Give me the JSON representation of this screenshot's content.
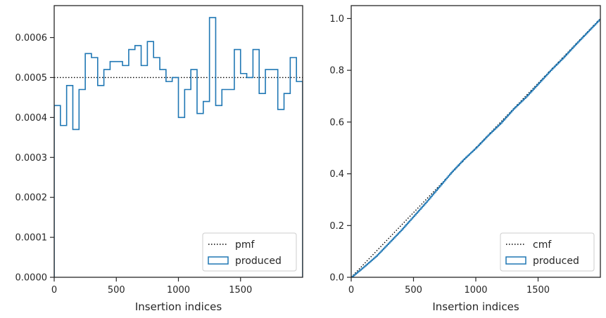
{
  "chart_data": [
    {
      "type": "line",
      "subtype": "step-histogram",
      "xlabel": "Insertion indices",
      "ylabel": "",
      "xlim": [
        0,
        2000
      ],
      "ylim": [
        0,
        0.00068
      ],
      "xticks": [
        0,
        500,
        1000,
        1500
      ],
      "xtick_labels": [
        "0",
        "500",
        "1000",
        "1500"
      ],
      "yticks": [
        0,
        0.0001,
        0.0002,
        0.0003,
        0.0004,
        0.0005,
        0.0006
      ],
      "ytick_labels": [
        "0.0000",
        "0.0001",
        "0.0002",
        "0.0003",
        "0.0004",
        "0.0005",
        "0.0006"
      ],
      "grid": false,
      "legend_position": "lower-right",
      "bin_width": 50,
      "series": [
        {
          "name": "pmf",
          "style": "dotted",
          "color": "#000000",
          "x": [
            0,
            2000
          ],
          "y": [
            0.0005,
            0.0005
          ]
        },
        {
          "name": "produced",
          "style": "step",
          "color": "#1f77b4",
          "bin_edges_start": [
            0,
            50,
            100,
            150,
            200,
            250,
            300,
            350,
            400,
            450,
            500,
            550,
            600,
            650,
            700,
            750,
            800,
            850,
            900,
            950,
            1000,
            1050,
            1100,
            1150,
            1200,
            1250,
            1300,
            1350,
            1400,
            1450,
            1500,
            1550,
            1600,
            1650,
            1700,
            1750,
            1800,
            1850,
            1900,
            1950
          ],
          "values": [
            0.00043,
            0.00038,
            0.00048,
            0.00037,
            0.00047,
            0.00056,
            0.00055,
            0.00048,
            0.00052,
            0.00054,
            0.00054,
            0.00053,
            0.00057,
            0.00058,
            0.00053,
            0.00059,
            0.00055,
            0.00052,
            0.00049,
            0.0005,
            0.0004,
            0.00047,
            0.00052,
            0.00041,
            0.00044,
            0.00065,
            0.00043,
            0.00047,
            0.00047,
            0.00057,
            0.00051,
            0.0005,
            0.00057,
            0.00046,
            0.00052,
            0.00052,
            0.00042,
            0.00046,
            0.00055,
            0.00049
          ]
        }
      ]
    },
    {
      "type": "line",
      "xlabel": "Insertion indices",
      "ylabel": "",
      "xlim": [
        0,
        2000
      ],
      "ylim": [
        0,
        1.05
      ],
      "xticks": [
        0,
        500,
        1000,
        1500
      ],
      "xtick_labels": [
        "0",
        "500",
        "1000",
        "1500"
      ],
      "yticks": [
        0,
        0.2,
        0.4,
        0.6,
        0.8,
        1.0
      ],
      "ytick_labels": [
        "0.0",
        "0.2",
        "0.4",
        "0.6",
        "0.8",
        "1.0"
      ],
      "grid": false,
      "legend_position": "lower-right",
      "series": [
        {
          "name": "cmf",
          "style": "dotted",
          "color": "#000000",
          "x": [
            0,
            2000
          ],
          "y": [
            0,
            1.0
          ]
        },
        {
          "name": "produced",
          "style": "step",
          "color": "#1f77b4",
          "x": [
            0,
            100,
            200,
            300,
            400,
            500,
            600,
            700,
            800,
            900,
            1000,
            1100,
            1200,
            1300,
            1400,
            1500,
            1600,
            1700,
            1800,
            1900,
            2000
          ],
          "y": [
            0,
            0.04,
            0.082,
            0.132,
            0.182,
            0.236,
            0.29,
            0.347,
            0.404,
            0.455,
            0.5,
            0.55,
            0.596,
            0.65,
            0.696,
            0.748,
            0.8,
            0.848,
            0.9,
            0.95,
            1.0
          ]
        }
      ]
    }
  ]
}
